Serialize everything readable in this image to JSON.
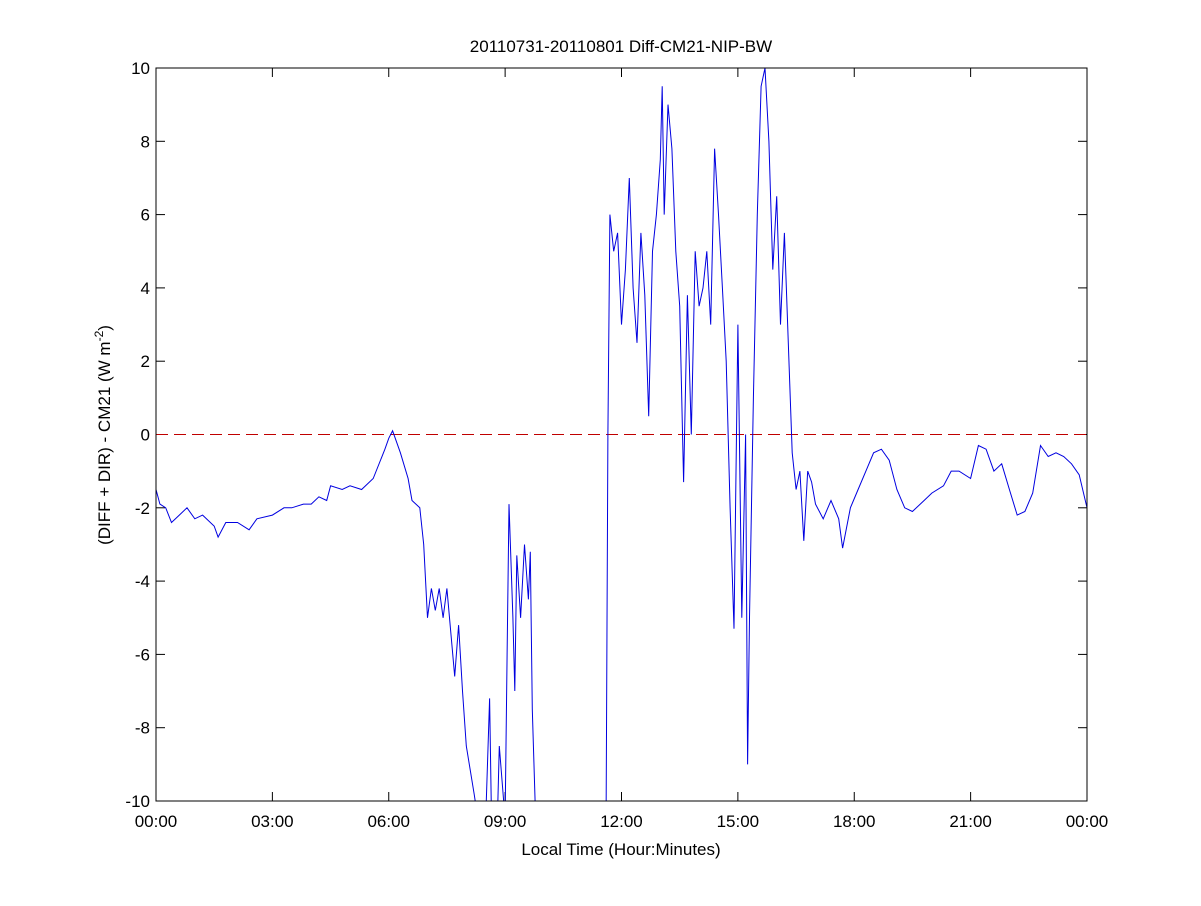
{
  "chart_data": {
    "type": "line",
    "title": "20110731-20110801 Diff-CM21-NIP-BW",
    "xlabel": "Local Time (Hour:Minutes)",
    "ylabel_main": "(DIFF + DIR) - CM21 (W m",
    "ylabel_sup": "-2",
    "ylabel_end": ")",
    "xlim": [
      "00:00",
      "24:00"
    ],
    "ylim": [
      -10,
      10
    ],
    "xticks": [
      "00:00",
      "03:00",
      "06:00",
      "09:00",
      "12:00",
      "15:00",
      "18:00",
      "21:00",
      "00:00"
    ],
    "yticks": [
      -10,
      -8,
      -6,
      -4,
      -2,
      0,
      2,
      4,
      6,
      8,
      10
    ],
    "grid": false,
    "reference_line": {
      "y": 0,
      "style": "dashed",
      "color": "#c00000"
    },
    "series_color": "#0000e0",
    "series": [
      {
        "x": [
          "00:00",
          "00:06",
          "00:15",
          "00:24",
          "00:36",
          "00:48",
          "01:00",
          "01:12",
          "01:30",
          "01:36",
          "01:48",
          "02:06",
          "02:24",
          "02:36",
          "03:00",
          "03:18",
          "03:30",
          "03:48",
          "04:00",
          "04:12",
          "04:24",
          "04:30",
          "04:48",
          "05:00",
          "05:18",
          "05:36",
          "05:54",
          "06:00",
          "06:06",
          "06:18",
          "06:30",
          "06:36",
          "06:48",
          "06:54",
          "07:00",
          "07:06",
          "07:12",
          "07:18",
          "07:24",
          "07:30",
          "07:36",
          "07:42",
          "07:48",
          "07:54",
          "08:00",
          "08:12",
          "08:18",
          "08:30",
          "08:36",
          "08:39",
          "08:48",
          "08:51",
          "09:00",
          "09:03",
          "09:06",
          "09:12",
          "09:15",
          "09:18",
          "09:24",
          "09:30",
          "09:36",
          "09:39",
          "09:42",
          "09:48",
          "10:30",
          "11:36",
          "11:39",
          "11:42",
          "11:48",
          "11:54",
          "12:00",
          "12:06",
          "12:12",
          "12:18",
          "12:24",
          "12:30",
          "12:36",
          "12:42",
          "12:48",
          "12:54",
          "13:00",
          "13:03",
          "13:06",
          "13:12",
          "13:18",
          "13:24",
          "13:30",
          "13:36",
          "13:42",
          "13:48",
          "13:54",
          "14:00",
          "14:06",
          "14:12",
          "14:18",
          "14:24",
          "14:30",
          "14:36",
          "14:42",
          "14:48",
          "14:54",
          "15:00",
          "15:06",
          "15:12",
          "15:15",
          "15:18",
          "15:24",
          "15:30",
          "15:36",
          "15:42",
          "15:48",
          "15:54",
          "16:00",
          "16:06",
          "16:12",
          "16:18",
          "16:24",
          "16:30",
          "16:36",
          "16:42",
          "16:48",
          "16:54",
          "17:00",
          "17:12",
          "17:24",
          "17:36",
          "17:42",
          "17:54",
          "18:06",
          "18:18",
          "18:30",
          "18:42",
          "18:54",
          "19:06",
          "19:18",
          "19:30",
          "19:48",
          "20:00",
          "20:18",
          "20:30",
          "20:42",
          "21:00",
          "21:12",
          "21:24",
          "21:36",
          "21:48",
          "22:00",
          "22:12",
          "22:24",
          "22:36",
          "22:48",
          "23:00",
          "23:12",
          "23:24",
          "23:36",
          "23:48",
          "24:00"
        ],
        "y": [
          -1.5,
          -1.9,
          -2.0,
          -2.4,
          -2.2,
          -2.0,
          -2.3,
          -2.2,
          -2.5,
          -2.8,
          -2.4,
          -2.4,
          -2.6,
          -2.3,
          -2.2,
          -2.0,
          -2.0,
          -1.9,
          -1.9,
          -1.7,
          -1.8,
          -1.4,
          -1.5,
          -1.4,
          -1.5,
          -1.2,
          -0.4,
          -0.1,
          0.1,
          -0.5,
          -1.2,
          -1.8,
          -2.0,
          -3.0,
          -5.0,
          -4.2,
          -4.8,
          -4.2,
          -5.0,
          -4.2,
          -5.4,
          -6.6,
          -5.2,
          -7.0,
          -8.5,
          -9.8,
          -10.5,
          -10.5,
          -7.2,
          -10.5,
          -10.5,
          -8.5,
          -10.5,
          -6.0,
          -1.9,
          -5.0,
          -7.0,
          -3.3,
          -5.0,
          -3.0,
          -4.5,
          -3.2,
          -7.5,
          -11,
          -11,
          -11,
          0,
          6.0,
          5.0,
          5.5,
          3.0,
          4.5,
          7.0,
          4.0,
          2.5,
          5.5,
          3.8,
          0.5,
          5.0,
          6.0,
          7.5,
          9.5,
          6.0,
          9.0,
          7.8,
          5.0,
          3.5,
          -1.3,
          3.8,
          0.0,
          5.0,
          3.5,
          4.0,
          5.0,
          3.0,
          7.8,
          6.0,
          4.0,
          2.0,
          -2.0,
          -5.3,
          3.0,
          -5.0,
          0.0,
          -9.0,
          -5.0,
          1.0,
          6.0,
          9.5,
          10.0,
          8.0,
          4.5,
          6.5,
          3.0,
          5.5,
          2.5,
          -0.5,
          -1.5,
          -1.0,
          -2.9,
          -1.0,
          -1.3,
          -1.9,
          -2.3,
          -1.8,
          -2.3,
          -3.1,
          -2.0,
          -1.5,
          -1.0,
          -0.5,
          -0.4,
          -0.7,
          -1.5,
          -2.0,
          -2.1,
          -1.8,
          -1.6,
          -1.4,
          -1.0,
          -1.0,
          -1.2,
          -0.3,
          -0.4,
          -1.0,
          -0.8,
          -1.5,
          -2.2,
          -2.1,
          -1.6,
          -0.3,
          -0.6,
          -0.5,
          -0.6,
          -0.8,
          -1.1,
          -2.0
        ]
      }
    ]
  }
}
